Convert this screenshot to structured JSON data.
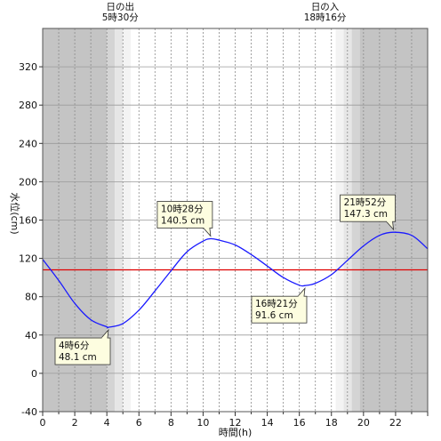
{
  "chart_data": {
    "type": "line",
    "xlabel": "時間(h)",
    "ylabel": "水位(cm)",
    "xlim": [
      0,
      24
    ],
    "ylim": [
      -40,
      360
    ],
    "xticks": [
      0,
      2,
      4,
      6,
      8,
      10,
      12,
      14,
      16,
      18,
      20,
      22
    ],
    "yticks": [
      -40,
      0,
      40,
      80,
      120,
      160,
      200,
      240,
      280,
      320
    ],
    "grid": true,
    "mean_level": 108,
    "sunrise": {
      "time": 5.5,
      "label1": "日の出",
      "label2": "5時30分"
    },
    "sunset": {
      "time": 18.267,
      "label1": "日の入",
      "label2": "18時16分"
    },
    "series": [
      {
        "x": [
          0,
          1,
          2,
          3,
          4,
          4.1,
          5,
          6,
          7,
          8,
          9,
          10,
          10.47,
          11,
          12,
          13,
          14,
          15,
          16,
          16.35,
          17,
          18,
          19,
          20,
          21,
          21.87,
          23,
          24
        ],
        "values": [
          119,
          97,
          73,
          56,
          48.5,
          48.1,
          52,
          66,
          86,
          107,
          127,
          138,
          140.5,
          139,
          134,
          124,
          112,
          100,
          92,
          91.6,
          94,
          103,
          118,
          133,
          144,
          147.3,
          144,
          130
        ]
      }
    ],
    "annotations": [
      {
        "x": 4.1,
        "y": 48.1,
        "time": "4時6分",
        "value": "48.1 cm"
      },
      {
        "x": 10.47,
        "y": 140.5,
        "time": "10時28分",
        "value": "140.5 cm"
      },
      {
        "x": 16.35,
        "y": 91.6,
        "time": "16時21分",
        "value": "91.6 cm"
      },
      {
        "x": 21.87,
        "y": 147.3,
        "time": "21時52分",
        "value": "147.3 cm"
      }
    ],
    "colors": {
      "curve": "#1a1aff",
      "mean_line": "#e00000",
      "night": "#c4c4c4",
      "twilight1": "#d4d4d4",
      "twilight2": "#e6e6e6",
      "twilight3": "#f3f3f3",
      "label_bg": "#fdfde0"
    }
  }
}
